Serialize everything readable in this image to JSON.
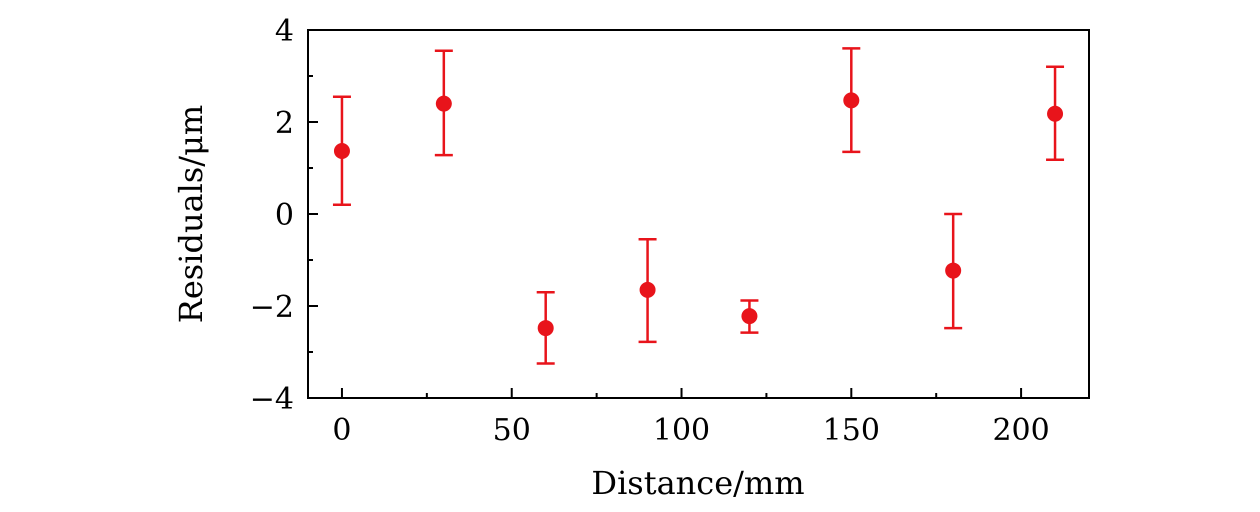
{
  "chart_data": {
    "type": "scatter",
    "title": "",
    "xlabel": "Distance/mm",
    "ylabel": "Residuals/μm",
    "xlim": [
      -10,
      220
    ],
    "ylim": [
      -4,
      4
    ],
    "x_ticks": [
      0,
      50,
      100,
      150,
      200
    ],
    "x_tick_labels": [
      "0",
      "50",
      "100",
      "150",
      "200"
    ],
    "x_minor_ticks": [
      25,
      75,
      125,
      175
    ],
    "y_ticks": [
      -4,
      -2,
      0,
      2,
      4
    ],
    "y_tick_labels": [
      "−4",
      "−2",
      "0",
      "2",
      "4"
    ],
    "y_minor_ticks": [
      -3,
      -1,
      1,
      3
    ],
    "grid": false,
    "legend": "none",
    "color": "#e8141b",
    "series": [
      {
        "x": [
          0,
          30,
          60,
          90,
          120,
          150,
          180,
          210
        ],
        "y": [
          1.37,
          2.4,
          -2.48,
          -1.65,
          -2.22,
          2.47,
          -1.23,
          2.18
        ],
        "y_err_upper": [
          2.55,
          3.55,
          -1.7,
          -0.55,
          -1.88,
          3.6,
          0.0,
          3.2
        ],
        "y_err_lower": [
          0.2,
          1.28,
          -3.25,
          -2.78,
          -2.58,
          1.35,
          -2.48,
          1.18
        ]
      }
    ]
  }
}
